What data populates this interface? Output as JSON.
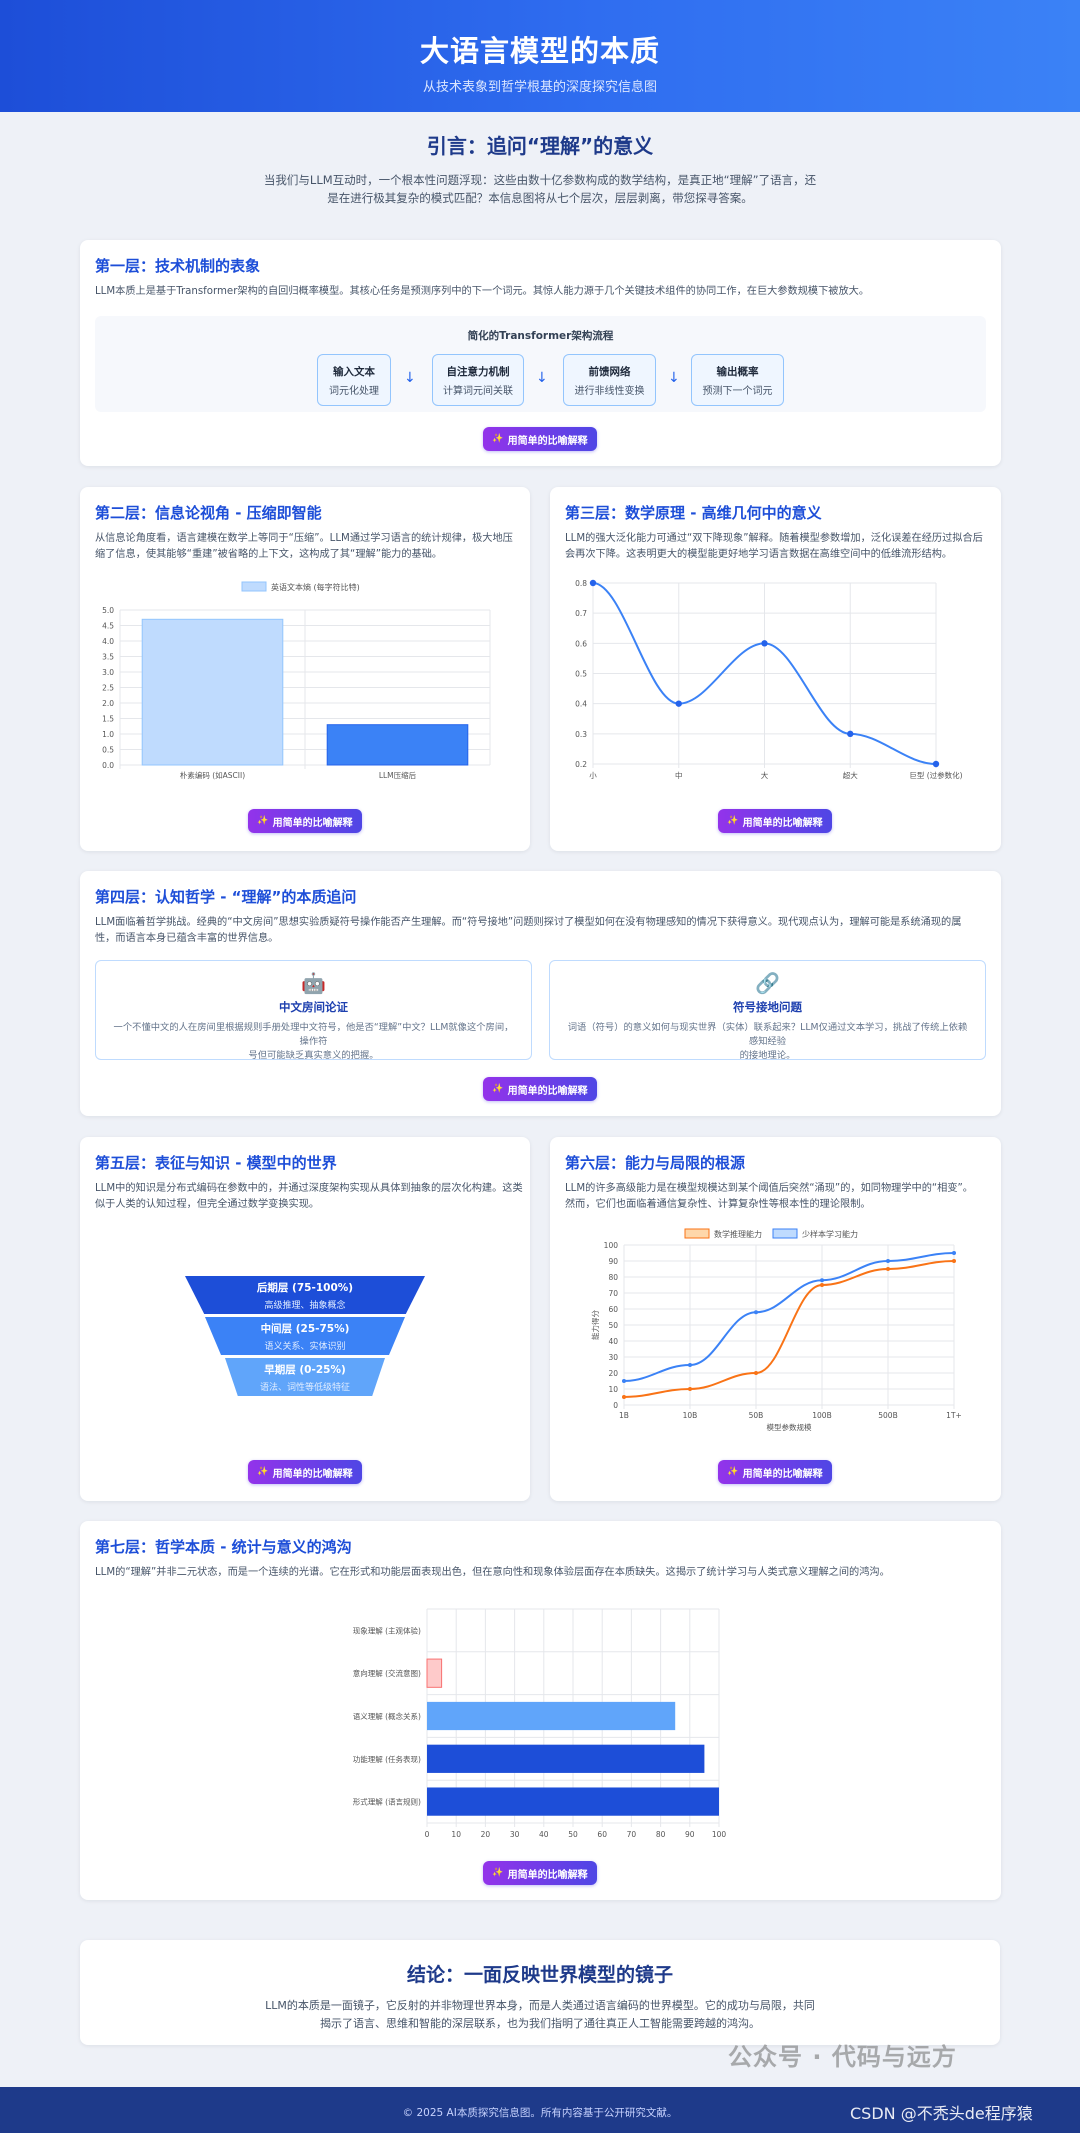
{
  "header": {
    "title": "大语言模型的本质",
    "subtitle": "从技术表象到哲学根基的深度探究信息图"
  },
  "intro": {
    "title": "引言：追问“理解”的意义",
    "text": "当我们与LLM互动时，一个根本性问题浮现：这些由数十亿参数构成的数学结构，是真正地“理解”了语言，还是在进行极其复杂的模式匹配？本信息图将从七个层次，层层剥离，带您探寻答案。"
  },
  "button_label": "用简单的比喻解释",
  "colors": {
    "primary": "#1d4ed8",
    "accent_purple": "#9333ea",
    "accent_indigo": "#4f46e5",
    "orange": "#f97316",
    "blue": "#3b82f6",
    "pink": "#fecaca"
  },
  "layer1": {
    "title": "第一层：技术机制的表象",
    "text": "LLM本质上是基于Transformer架构的自回归概率模型。其核心任务是预测序列中的下一个词元。其惊人能力源于几个关键技术组件的协同工作，在巨大参数规模下被放大。",
    "flow_title": "简化的Transformer架构流程",
    "nodes": [
      {
        "title": "输入文本",
        "sub": "词元化处理"
      },
      {
        "title": "自注意力机制",
        "sub": "计算词元间关联"
      },
      {
        "title": "前馈网络",
        "sub": "进行非线性变换"
      },
      {
        "title": "输出概率",
        "sub": "预测下一个词元"
      }
    ],
    "arrow": "↓"
  },
  "layer2": {
    "title": "第二层：信息论视角 - 压缩即智能",
    "text_lines": [
      "从信息论角度看，语言建模在数学上等同于“压缩”。LLM通过学习语言的统计规律，极大地压",
      "缩了信息，使其能够“重建”被省略的上下文，这构成了其“理解”能力的基础。"
    ]
  },
  "layer3": {
    "title": "第三层：数学原理 - 高维几何中的意义",
    "text_lines": [
      "LLM的强大泛化能力可通过“双下降现象”解释。随着模型参数增加，泛化误差在经历过拟合后",
      "会再次下降。这表明更大的模型能更好地学习语言数据在高维空间中的低维流形结构。"
    ]
  },
  "layer4": {
    "title": "第四层：认知哲学 - “理解”的本质追问",
    "text_lines": [
      "LLM面临着哲学挑战。经典的“中文房间”思想实验质疑符号操作能否产生理解。而“符号接地”问题则探讨了模型如何在没有物理感知的情况下获得意义。现代观点认为，理解可能是系统涌现的属",
      "性，而语言本身已蕴含丰富的世界信息。"
    ],
    "cards": [
      {
        "icon": "robot-icon",
        "emoji": "🤖",
        "title": "中文房间论证",
        "text_lines": [
          "一个不懂中文的人在房间里根据规则手册处理中文符号，他是否“理解”中文？LLM就像这个房间，操作符",
          "号但可能缺乏真实意义的把握。"
        ]
      },
      {
        "icon": "link-icon",
        "emoji": "🔗",
        "title": "符号接地问题",
        "text_lines": [
          "词语（符号）的意义如何与现实世界（实体）联系起来？LLM仅通过文本学习，挑战了传统上依赖感知经验",
          "的接地理论。"
        ]
      }
    ]
  },
  "layer5": {
    "title": "第五层：表征与知识 - 模型中的世界",
    "text_lines": [
      "LLM中的知识是分布式编码在参数中的，并通过深度架构实现从具体到抽象的层次化构建。这类",
      "似于人类的认知过程，但完全通过数学变换实现。"
    ],
    "pyramid": [
      {
        "title": "后期层 (75-100%)",
        "sub": "高级推理、抽象概念"
      },
      {
        "title": "中间层 (25-75%)",
        "sub": "语义关系、实体识别"
      },
      {
        "title": "早期层 (0-25%)",
        "sub": "语法、词性等低级特征"
      }
    ]
  },
  "layer6": {
    "title": "第六层：能力与局限的根源",
    "text_lines": [
      "LLM的许多高级能力是在模型规模达到某个阈值后突然“涌现”的，如同物理学中的“相变”。",
      "然而，它们也面临着通信复杂性、计算复杂性等根本性的理论限制。"
    ]
  },
  "layer7": {
    "title": "第七层：哲学本质 - 统计与意义的鸿沟",
    "text": "LLM的“理解”并非二元状态，而是一个连续的光谱。它在形式和功能层面表现出色，但在意向性和现象体验层面存在本质缺失。这揭示了统计学习与人类式意义理解之间的鸿沟。"
  },
  "conclusion": {
    "title": "结论：一面反映世界模型的镜子",
    "text": "LLM的本质是一面镜子，它反射的并非物理世界本身，而是人类通过语言编码的世界模型。它的成功与局限，共同揭示了语言、思维和智能的深层联系，也为我们指明了通往真正人工智能需要跨越的鸿沟。"
  },
  "footer": {
    "text": "© 2025 AI本质探究信息图。所有内容基于公开研究文献。"
  },
  "watermarks": {
    "wechat": "公众号 · 代码与远方",
    "csdn": "CSDN @不秃头de程序猿"
  },
  "chart_data": [
    {
      "type": "bar",
      "categories": [
        "朴素编码 (如ASCII)",
        "LLM压缩后"
      ],
      "series": [
        {
          "name": "英语文本熵 (每字符比特)",
          "values": [
            4.7,
            1.3
          ],
          "colors": [
            "#bfdbfe",
            "#3b82f6"
          ]
        }
      ],
      "ylim": [
        0,
        5
      ],
      "yticks": [
        0,
        0.5,
        1,
        1.5,
        2,
        2.5,
        3,
        3.5,
        4,
        4.5,
        5
      ],
      "grid": true,
      "legend": "top"
    },
    {
      "type": "line",
      "categories": [
        "小",
        "中",
        "大",
        "超大",
        "巨型 (过参数化)"
      ],
      "series": [
        {
          "name": "",
          "values": [
            0.8,
            0.4,
            0.6,
            0.3,
            0.2
          ]
        }
      ],
      "ylim": [
        0.2,
        0.8
      ],
      "yticks": [
        0.2,
        0.3,
        0.4,
        0.5,
        0.6,
        0.7,
        0.8
      ],
      "grid": true,
      "legend": "none"
    },
    {
      "type": "line",
      "categories": [
        "1B",
        "10B",
        "50B",
        "100B",
        "500B",
        "1T+"
      ],
      "xlabel": "模型参数规模",
      "ylabel": "能力得分",
      "series": [
        {
          "name": "数学推理能力",
          "color": "#f97316",
          "values": [
            5,
            10,
            20,
            75,
            85,
            90
          ]
        },
        {
          "name": "少样本学习能力",
          "color": "#3b82f6",
          "values": [
            15,
            25,
            58,
            78,
            90,
            95
          ]
        }
      ],
      "ylim": [
        0,
        100
      ],
      "yticks": [
        0,
        10,
        20,
        30,
        40,
        50,
        60,
        70,
        80,
        90,
        100
      ],
      "grid": true,
      "legend": "top"
    },
    {
      "type": "bar",
      "orientation": "horizontal",
      "categories": [
        "现象理解 (主观体验)",
        "意向理解 (交流意图)",
        "语义理解 (概念关系)",
        "功能理解 (任务表现)",
        "形式理解 (语言规则)"
      ],
      "series": [
        {
          "name": "",
          "values": [
            0,
            5,
            85,
            95,
            100
          ],
          "colors": [
            "#fecaca",
            "#fecaca",
            "#60a5fa",
            "#1d4ed8",
            "#1d4ed8"
          ]
        }
      ],
      "xlim": [
        0,
        100
      ],
      "xticks": [
        0,
        10,
        20,
        30,
        40,
        50,
        60,
        70,
        80,
        90,
        100
      ],
      "grid": true,
      "legend": "none"
    }
  ]
}
